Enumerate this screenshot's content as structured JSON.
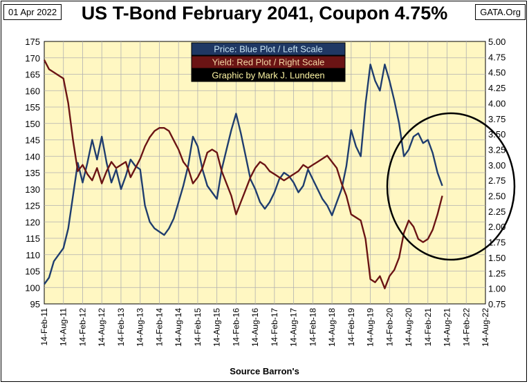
{
  "header": {
    "date": "01 Apr 2022",
    "source": "GATA.Org"
  },
  "footer": {
    "source_note": "Source Barron's"
  },
  "legend": [
    {
      "text": "Price:  Blue Plot / Left Scale",
      "bg": "#1f3864",
      "fg": "#c9e7f5"
    },
    {
      "text": "Yield:  Red Plot / Right Scale",
      "bg": "#6b1414",
      "fg": "#f4d6a4"
    },
    {
      "text": "Graphic by Mark J. Lundeen",
      "bg": "#000000",
      "fg": "#fbf3a3"
    }
  ],
  "colors": {
    "plot_bg": "#fff7c2",
    "price": "#1f3d6e",
    "yield": "#6b1414",
    "grid": "#b0b0b0"
  },
  "chart_data": {
    "type": "line",
    "title": "US T-Bond February 2041, Coupon 4.75%",
    "x_ticks": [
      "14-Feb-11",
      "14-Aug-11",
      "14-Feb-12",
      "14-Aug-12",
      "14-Feb-13",
      "14-Aug-13",
      "14-Feb-14",
      "14-Aug-14",
      "14-Feb-15",
      "14-Aug-15",
      "14-Feb-16",
      "14-Aug-16",
      "14-Feb-17",
      "14-Aug-17",
      "14-Feb-18",
      "14-Aug-18",
      "14-Feb-19",
      "14-Aug-19",
      "14-Feb-20",
      "14-Aug-20",
      "14-Feb-21",
      "14-Aug-21",
      "14-Feb-22",
      "14-Aug-22"
    ],
    "y_left": {
      "min": 95,
      "max": 175,
      "ticks": [
        "95",
        "100",
        "105",
        "110",
        "115",
        "120",
        "125",
        "130",
        "135",
        "140",
        "145",
        "150",
        "155",
        "160",
        "165",
        "170",
        "175"
      ]
    },
    "y_right": {
      "min": 0.75,
      "max": 5.0,
      "ticks": [
        "0.75",
        "1.00",
        "1.25",
        "1.50",
        "1.75",
        "2.00",
        "2.25",
        "2.50",
        "2.75",
        "3.00",
        "3.25",
        "3.50",
        "3.75",
        "4.00",
        "4.25",
        "4.50",
        "4.75",
        "5.00"
      ]
    },
    "grid": true,
    "series": [
      {
        "name": "Price",
        "axis": "left",
        "points": [
          [
            0.0,
            101
          ],
          [
            0.5,
            103
          ],
          [
            1.0,
            108
          ],
          [
            1.5,
            110
          ],
          [
            2.0,
            112
          ],
          [
            2.5,
            118
          ],
          [
            3.0,
            128
          ],
          [
            3.5,
            138
          ],
          [
            4.0,
            132
          ],
          [
            4.5,
            138
          ],
          [
            5.0,
            145
          ],
          [
            5.5,
            139
          ],
          [
            6.0,
            146
          ],
          [
            6.5,
            138
          ],
          [
            7.0,
            132
          ],
          [
            7.5,
            136
          ],
          [
            8.0,
            130
          ],
          [
            8.5,
            134
          ],
          [
            9.0,
            139
          ],
          [
            9.5,
            137
          ],
          [
            10.0,
            136
          ],
          [
            10.5,
            125
          ],
          [
            11.0,
            120
          ],
          [
            11.5,
            118
          ],
          [
            12.0,
            117
          ],
          [
            12.5,
            116
          ],
          [
            13.0,
            118
          ],
          [
            13.5,
            121
          ],
          [
            14.0,
            126
          ],
          [
            14.5,
            131
          ],
          [
            15.0,
            137
          ],
          [
            15.5,
            146
          ],
          [
            16.0,
            143
          ],
          [
            16.5,
            136
          ],
          [
            17.0,
            131
          ],
          [
            17.5,
            129
          ],
          [
            18.0,
            127
          ],
          [
            18.5,
            136
          ],
          [
            19.0,
            142
          ],
          [
            19.5,
            148
          ],
          [
            20.0,
            153
          ],
          [
            20.5,
            147
          ],
          [
            21.0,
            140
          ],
          [
            21.5,
            133
          ],
          [
            22.0,
            130
          ],
          [
            22.5,
            126
          ],
          [
            23.0,
            124
          ],
          [
            23.5,
            126
          ],
          [
            24.0,
            129
          ],
          [
            24.5,
            133
          ],
          [
            25.0,
            135
          ],
          [
            25.5,
            134
          ],
          [
            26.0,
            132
          ],
          [
            26.5,
            129
          ],
          [
            27.0,
            131
          ],
          [
            27.5,
            136
          ],
          [
            28.0,
            133
          ],
          [
            28.5,
            130
          ],
          [
            29.0,
            127
          ],
          [
            29.5,
            125
          ],
          [
            30.0,
            122
          ],
          [
            30.5,
            126
          ],
          [
            31.0,
            130
          ],
          [
            31.5,
            137
          ],
          [
            32.0,
            148
          ],
          [
            32.5,
            143
          ],
          [
            33.0,
            140
          ],
          [
            33.5,
            156
          ],
          [
            34.0,
            168
          ],
          [
            34.5,
            163
          ],
          [
            35.0,
            160
          ],
          [
            35.5,
            168
          ],
          [
            36.0,
            163
          ],
          [
            36.5,
            157
          ],
          [
            37.0,
            150
          ],
          [
            37.5,
            140
          ],
          [
            38.0,
            142
          ],
          [
            38.5,
            146
          ],
          [
            39.0,
            147
          ],
          [
            39.5,
            144
          ],
          [
            40.0,
            145
          ],
          [
            40.5,
            141
          ],
          [
            41.0,
            135
          ],
          [
            41.5,
            131
          ]
        ]
      },
      {
        "name": "Yield",
        "axis": "right",
        "points": [
          [
            0.0,
            4.7
          ],
          [
            0.5,
            4.55
          ],
          [
            1.0,
            4.5
          ],
          [
            1.5,
            4.45
          ],
          [
            2.0,
            4.4
          ],
          [
            2.5,
            4.0
          ],
          [
            3.0,
            3.4
          ],
          [
            3.5,
            2.9
          ],
          [
            4.0,
            3.0
          ],
          [
            4.5,
            2.85
          ],
          [
            5.0,
            2.75
          ],
          [
            5.5,
            2.95
          ],
          [
            6.0,
            2.7
          ],
          [
            6.5,
            2.9
          ],
          [
            7.0,
            3.05
          ],
          [
            7.5,
            2.95
          ],
          [
            8.0,
            3.0
          ],
          [
            8.5,
            3.05
          ],
          [
            9.0,
            2.8
          ],
          [
            9.5,
            2.95
          ],
          [
            10.0,
            3.1
          ],
          [
            10.5,
            3.3
          ],
          [
            11.0,
            3.45
          ],
          [
            11.5,
            3.55
          ],
          [
            12.0,
            3.6
          ],
          [
            12.5,
            3.6
          ],
          [
            13.0,
            3.55
          ],
          [
            13.5,
            3.4
          ],
          [
            14.0,
            3.25
          ],
          [
            14.5,
            3.05
          ],
          [
            15.0,
            2.95
          ],
          [
            15.5,
            2.7
          ],
          [
            16.0,
            2.8
          ],
          [
            16.5,
            2.95
          ],
          [
            17.0,
            3.2
          ],
          [
            17.5,
            3.25
          ],
          [
            18.0,
            3.2
          ],
          [
            18.5,
            2.9
          ],
          [
            19.0,
            2.7
          ],
          [
            19.5,
            2.5
          ],
          [
            20.0,
            2.2
          ],
          [
            20.5,
            2.4
          ],
          [
            21.0,
            2.6
          ],
          [
            21.5,
            2.8
          ],
          [
            22.0,
            2.95
          ],
          [
            22.5,
            3.05
          ],
          [
            23.0,
            3.0
          ],
          [
            23.5,
            2.9
          ],
          [
            24.0,
            2.85
          ],
          [
            24.5,
            2.8
          ],
          [
            25.0,
            2.75
          ],
          [
            25.5,
            2.8
          ],
          [
            26.0,
            2.85
          ],
          [
            26.5,
            2.9
          ],
          [
            27.0,
            3.0
          ],
          [
            27.5,
            2.95
          ],
          [
            28.0,
            3.0
          ],
          [
            28.5,
            3.05
          ],
          [
            29.0,
            3.1
          ],
          [
            29.5,
            3.15
          ],
          [
            30.0,
            3.05
          ],
          [
            30.5,
            2.95
          ],
          [
            31.0,
            2.7
          ],
          [
            31.5,
            2.5
          ],
          [
            32.0,
            2.2
          ],
          [
            32.5,
            2.15
          ],
          [
            33.0,
            2.1
          ],
          [
            33.5,
            1.8
          ],
          [
            34.0,
            1.15
          ],
          [
            34.5,
            1.1
          ],
          [
            35.0,
            1.2
          ],
          [
            35.5,
            1.0
          ],
          [
            36.0,
            1.2
          ],
          [
            36.5,
            1.3
          ],
          [
            37.0,
            1.5
          ],
          [
            37.5,
            1.9
          ],
          [
            38.0,
            2.1
          ],
          [
            38.5,
            2.0
          ],
          [
            39.0,
            1.8
          ],
          [
            39.5,
            1.75
          ],
          [
            40.0,
            1.8
          ],
          [
            40.5,
            1.95
          ],
          [
            41.0,
            2.2
          ],
          [
            41.5,
            2.5
          ]
        ]
      }
    ]
  }
}
